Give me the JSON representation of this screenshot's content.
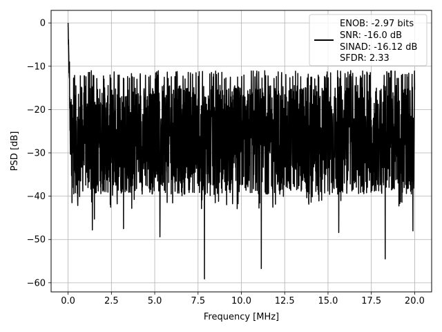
{
  "chart_data": {
    "type": "line",
    "title": "",
    "xlabel": "Frequency [MHz]",
    "ylabel": "PSD [dB]",
    "xlim": [
      -0.98,
      20.98
    ],
    "ylim": [
      -62.1,
      2.9
    ],
    "x_ticks": [
      0.0,
      2.5,
      5.0,
      7.5,
      10.0,
      12.5,
      15.0,
      17.5,
      20.0
    ],
    "x_tick_labels": [
      "0.0",
      "2.5",
      "5.0",
      "7.5",
      "10.0",
      "12.5",
      "15.0",
      "17.5",
      "20.0"
    ],
    "y_ticks": [
      0,
      -10,
      -20,
      -30,
      -40,
      -50,
      -60
    ],
    "y_tick_labels": [
      "0",
      "−10",
      "−20",
      "−30",
      "−40",
      "−50",
      "−60"
    ],
    "grid": true,
    "legend_position": "top-right",
    "legend_lines": [
      "ENOB: -2.97 bits",
      "SNR: -16.0 dB",
      "SINAD: -16.12 dB",
      "SFDR: 2.33"
    ],
    "series": [
      {
        "color": "#000000",
        "x_range": [
          0,
          20
        ],
        "notable_points": [
          {
            "x": 0.0,
            "y": 0
          },
          {
            "x": 0.02,
            "y": -5
          },
          {
            "x": 0.08,
            "y": -9
          },
          {
            "x": 0.25,
            "y": -38
          },
          {
            "x": 0.55,
            "y": -40.3
          },
          {
            "x": 1.4,
            "y": -47.8
          },
          {
            "x": 1.52,
            "y": -45.3
          },
          {
            "x": 3.2,
            "y": -47.5
          },
          {
            "x": 5.3,
            "y": -49.4
          },
          {
            "x": 7.87,
            "y": -59.1
          },
          {
            "x": 11.15,
            "y": -56.7
          },
          {
            "x": 15.62,
            "y": -48.4
          },
          {
            "x": 18.3,
            "y": -54.5
          },
          {
            "x": 19.9,
            "y": -48.0
          }
        ],
        "typical_range_db": [
          -37,
          -13
        ]
      }
    ]
  }
}
